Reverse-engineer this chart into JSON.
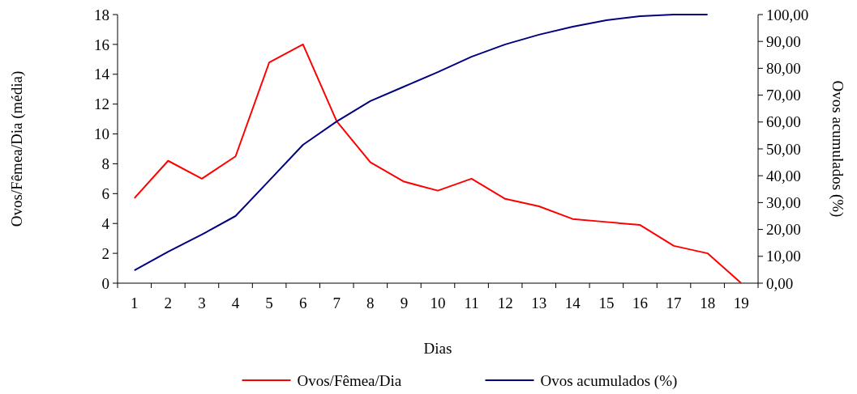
{
  "chart_data": {
    "type": "line",
    "xlabel": "Dias",
    "ylabel": "Ovos/Fêmea/Dia (média)",
    "y2label": "Ovos acumulados (%)",
    "categories": [
      "1",
      "2",
      "3",
      "4",
      "5",
      "6",
      "7",
      "8",
      "9",
      "10",
      "11",
      "12",
      "13",
      "14",
      "15",
      "16",
      "17",
      "18",
      "19"
    ],
    "series": [
      {
        "name": "Ovos/Fêmea/Dia",
        "color": "#ff0000",
        "values": [
          5.7,
          8.2,
          7.0,
          8.5,
          14.8,
          16.0,
          10.85,
          8.1,
          6.8,
          6.2,
          7.0,
          5.65,
          5.15,
          4.3,
          4.1,
          3.9,
          2.5,
          2.0,
          0
        ]
      },
      {
        "name": "Ovos acumulados (%)",
        "color": "#000080",
        "axis": "y2",
        "values": [
          4.8,
          11.7,
          18.1,
          25,
          38.2,
          51.5,
          60.2,
          67.8,
          73.2,
          78.6,
          84.3,
          88.9,
          92.5,
          95.5,
          97.9,
          99.4,
          100,
          100,
          null
        ]
      }
    ],
    "ylim": [
      0,
      18
    ],
    "yticks": [
      0,
      2,
      4,
      6,
      8,
      10,
      12,
      14,
      16,
      18
    ],
    "y2lim": [
      0,
      100
    ],
    "y2ticks": [
      {
        "value": 0,
        "label": "0,00"
      },
      {
        "value": 10,
        "label": "10,00"
      },
      {
        "value": 20,
        "label": "20,00"
      },
      {
        "value": 30,
        "label": "30,00"
      },
      {
        "value": 40,
        "label": "40,00"
      },
      {
        "value": 50,
        "label": "50,00"
      },
      {
        "value": 60,
        "label": "60,00"
      },
      {
        "value": 70,
        "label": "70,00"
      },
      {
        "value": 80,
        "label": "80,00"
      },
      {
        "value": 90,
        "label": "90,00"
      },
      {
        "value": 100,
        "label": "100,00"
      }
    ],
    "legend": "bottom",
    "line_style": "solid"
  }
}
